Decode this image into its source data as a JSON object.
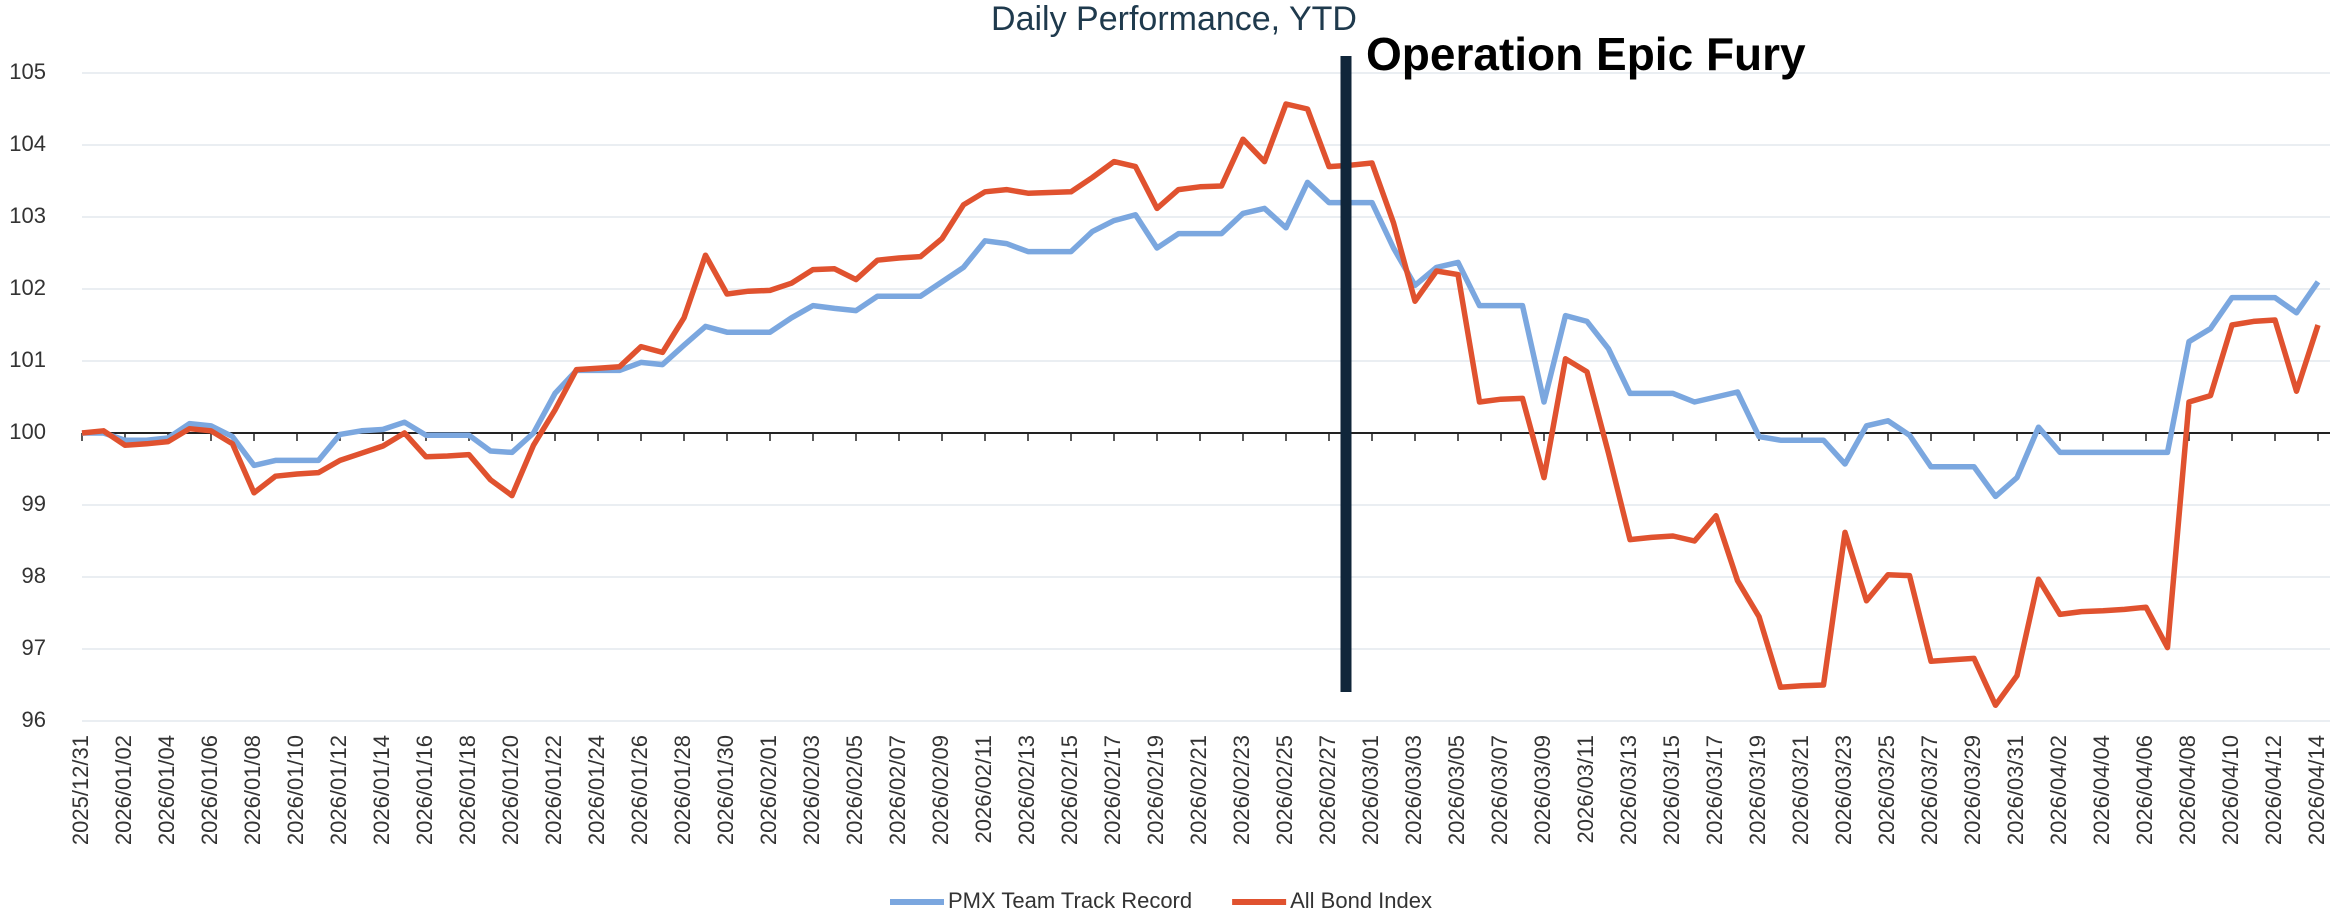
{
  "chart_data": {
    "type": "line",
    "title": "Daily Performance, YTD",
    "annotation": "Operation Epic Fury",
    "categories": [
      "2025/12/31",
      null,
      "2026/01/02",
      null,
      "2026/01/04",
      null,
      "2026/01/06",
      null,
      "2026/01/08",
      null,
      "2026/01/10",
      null,
      "2026/01/12",
      null,
      "2026/01/14",
      null,
      "2026/01/16",
      null,
      "2026/01/18",
      null,
      "2026/01/20",
      null,
      "2026/01/22",
      null,
      "2026/01/24",
      null,
      "2026/01/26",
      null,
      "2026/01/28",
      null,
      "2026/01/30",
      null,
      "2026/02/01",
      null,
      "2026/02/03",
      null,
      "2026/02/05",
      null,
      "2026/02/07",
      null,
      "2026/02/09",
      null,
      "2026/02/11",
      null,
      "2026/02/13",
      null,
      "2026/02/15",
      null,
      "2026/02/17",
      null,
      "2026/02/19",
      null,
      "2026/02/21",
      null,
      "2026/02/23",
      null,
      "2026/02/25",
      null,
      "2026/02/27",
      null,
      "2026/03/01",
      null,
      "2026/03/03",
      null,
      "2026/03/05",
      null,
      "2026/03/07",
      null,
      "2026/03/09",
      null,
      "2026/03/11",
      null,
      "2026/03/13",
      null,
      "2026/03/15",
      null,
      "2026/03/17",
      null,
      "2026/03/19",
      null,
      "2026/03/21",
      null,
      "2026/03/23",
      null,
      "2026/03/25",
      null,
      "2026/03/27",
      null,
      "2026/03/29",
      null,
      "2026/03/31",
      null,
      "2026/04/02",
      null,
      "2026/04/04",
      null,
      "2026/04/06",
      null,
      "2026/04/08",
      null,
      "2026/04/10",
      null,
      "2026/04/12",
      null,
      "2026/04/14"
    ],
    "series": [
      {
        "name": "PMX Team Track Record",
        "color": "#7ba7df",
        "values": [
          100,
          100,
          99.9,
          99.9,
          99.93,
          100.13,
          100.1,
          99.95,
          99.55,
          99.62,
          99.62,
          99.62,
          99.98,
          100.03,
          100.05,
          100.15,
          99.97,
          99.97,
          99.97,
          99.75,
          99.73,
          100,
          100.55,
          100.87,
          100.87,
          100.87,
          100.98,
          100.95,
          101.22,
          101.48,
          101.4,
          101.4,
          101.4,
          101.6,
          101.77,
          101.73,
          101.7,
          101.9,
          101.9,
          101.9,
          102.1,
          102.3,
          102.67,
          102.63,
          102.52,
          102.52,
          102.52,
          102.8,
          102.95,
          103.03,
          102.57,
          102.77,
          102.77,
          102.77,
          103.05,
          103.12,
          102.85,
          103.48,
          103.2,
          103.2,
          103.2,
          102.57,
          102.05,
          102.3,
          102.37,
          101.77,
          101.77,
          101.77,
          100.43,
          101.63,
          101.55,
          101.17,
          100.55,
          100.55,
          100.55,
          100.43,
          100.5,
          100.57,
          99.95,
          99.9,
          99.9,
          99.9,
          99.57,
          100.1,
          100.17,
          99.97,
          99.53,
          99.53,
          99.53,
          99.12,
          99.38,
          100.08,
          99.73,
          99.73,
          99.73,
          99.73,
          99.73,
          99.73,
          101.27,
          101.45,
          101.88,
          101.88,
          101.88,
          101.67,
          102.1
        ]
      },
      {
        "name": "All Bond Index",
        "color": "#e0522f",
        "values": [
          100,
          100.03,
          99.83,
          99.85,
          99.88,
          100.06,
          100.03,
          99.85,
          99.17,
          99.4,
          99.43,
          99.45,
          99.62,
          99.72,
          99.82,
          100,
          99.67,
          99.68,
          99.7,
          99.35,
          99.13,
          99.83,
          100.32,
          100.88,
          100.9,
          100.92,
          101.2,
          101.12,
          101.6,
          102.47,
          101.93,
          101.97,
          101.98,
          102.08,
          102.27,
          102.28,
          102.13,
          102.4,
          102.43,
          102.45,
          102.7,
          103.17,
          103.35,
          103.38,
          103.33,
          103.34,
          103.35,
          103.55,
          103.77,
          103.7,
          103.12,
          103.38,
          103.42,
          103.43,
          104.08,
          103.77,
          104.57,
          104.5,
          103.7,
          103.72,
          103.75,
          102.92,
          101.83,
          102.25,
          102.2,
          100.43,
          100.47,
          100.48,
          99.38,
          101.03,
          100.85,
          99.72,
          98.52,
          98.55,
          98.57,
          98.5,
          98.85,
          97.95,
          97.45,
          96.47,
          96.49,
          96.5,
          98.62,
          97.67,
          98.03,
          98.02,
          96.83,
          96.85,
          96.87,
          96.22,
          96.63,
          97.97,
          97.48,
          97.52,
          97.53,
          97.55,
          97.58,
          97.02,
          100.43,
          100.52,
          101.5,
          101.55,
          101.57,
          100.58,
          101.5
        ]
      }
    ],
    "ylim": [
      96,
      105
    ],
    "yticks": [
      96,
      97,
      98,
      99,
      100,
      101,
      102,
      103,
      104,
      105
    ],
    "grid": true,
    "baseline": 100,
    "legend": "bottom"
  }
}
